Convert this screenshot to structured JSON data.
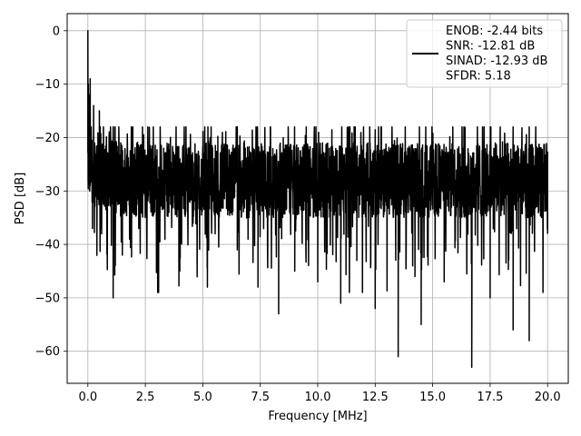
{
  "chart_data": {
    "type": "line",
    "xlabel": "Frequency [MHz]",
    "ylabel": "PSD [dB]",
    "xlim": [
      -0.9,
      20.9
    ],
    "ylim": [
      -66,
      3.2
    ],
    "xticks": [
      0.0,
      2.5,
      5.0,
      7.5,
      10.0,
      12.5,
      15.0,
      17.5,
      20.0
    ],
    "xtick_labels": [
      "0.0",
      "2.5",
      "5.0",
      "7.5",
      "10.0",
      "12.5",
      "15.0",
      "17.5",
      "20.0"
    ],
    "yticks": [
      0,
      -10,
      -20,
      -30,
      -40,
      -50,
      -60
    ],
    "ytick_labels": [
      "0",
      "−10",
      "−20",
      "−30",
      "−40",
      "−50",
      "−60"
    ],
    "grid": true,
    "legend_placement": "upper-right",
    "legend_entries": [
      "ENOB: -2.44 bits",
      "SNR: -12.81 dB",
      "SINAD: -12.93 dB",
      "SFDR: 5.18"
    ],
    "series": [
      {
        "color": "#000000",
        "x": [
          0.0,
          0.01,
          0.02,
          0.04,
          0.06,
          0.08,
          0.1,
          0.15,
          0.2,
          0.25,
          0.3,
          0.4,
          0.5,
          0.6,
          0.8,
          1.0,
          1.1,
          1.2,
          1.5,
          2.0,
          2.5,
          3.0,
          3.3,
          4.0,
          4.5,
          5.0,
          5.2,
          6.0,
          6.5,
          7.0,
          7.4,
          8.0,
          8.3,
          8.5,
          9.0,
          9.5,
          10.0,
          10.5,
          11.0,
          11.3,
          11.7,
          12.0,
          12.5,
          13.0,
          13.5,
          14.0,
          14.5,
          15.0,
          15.5,
          16.0,
          16.7,
          17.0,
          17.5,
          18.0,
          18.5,
          19.0,
          19.2,
          19.5,
          20.0
        ],
        "y": [
          0,
          -28,
          -10,
          -25,
          -12,
          -30,
          -9,
          -22,
          -37,
          -14,
          -33,
          -22,
          -15,
          -38,
          -24,
          -21,
          -50,
          -26,
          -42,
          -32,
          -28,
          -40,
          -22,
          -45,
          -24,
          -33,
          -48,
          -30,
          -41,
          -27,
          -48,
          -31,
          -53,
          -20,
          -45,
          -25,
          -47,
          -22,
          -51,
          -27,
          -43,
          -30,
          -52,
          -25,
          -61,
          -22,
          -55,
          -26,
          -47,
          -28,
          -63,
          -25,
          -50,
          -30,
          -56,
          -29,
          -58,
          -33,
          -38
        ]
      }
    ]
  }
}
